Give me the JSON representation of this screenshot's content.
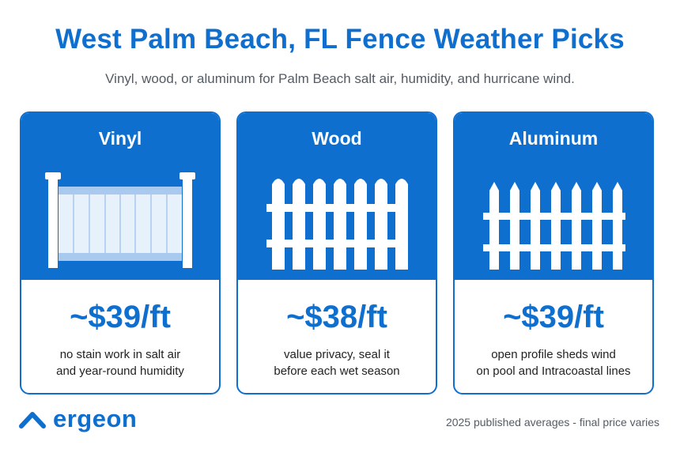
{
  "header": {
    "title": "West Palm Beach, FL Fence Weather Picks",
    "subtitle": "Vinyl, wood, or aluminum for Palm Beach salt air, humidity, and hurricane wind."
  },
  "cards": [
    {
      "name": "Vinyl",
      "price": "~$39/ft",
      "note_line1": "no stain work in salt air",
      "note_line2": "and year-round humidity",
      "icon": "vinyl-fence-icon"
    },
    {
      "name": "Wood",
      "price": "~$38/ft",
      "note_line1": "value privacy, seal it",
      "note_line2": "before each wet season",
      "icon": "wood-picket-fence-icon"
    },
    {
      "name": "Aluminum",
      "price": "~$39/ft",
      "note_line1": "open profile sheds wind",
      "note_line2": "on pool and Intracoastal lines",
      "icon": "aluminum-spear-fence-icon"
    }
  ],
  "footer": {
    "brand": "ergeon",
    "note": "2025 published averages - final price varies"
  },
  "colors": {
    "brand_blue": "#0f6fcf",
    "text_gray": "#555b63",
    "vinyl_panel": "#e6f1fb",
    "vinyl_stripe": "#a9c9ee"
  }
}
